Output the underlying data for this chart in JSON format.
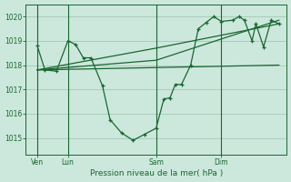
{
  "xlabel": "Pression niveau de la mer( hPa )",
  "background_color": "#cce8dc",
  "grid_color": "#aaccbb",
  "line_color": "#1a6630",
  "ylim": [
    1014.3,
    1020.5
  ],
  "y_ticks": [
    1015,
    1016,
    1017,
    1018,
    1019,
    1020
  ],
  "xlim": [
    0,
    34
  ],
  "day_labels": [
    "Ven",
    "Lun",
    "Sam",
    "Dim"
  ],
  "day_positions": [
    1.5,
    5.5,
    17.0,
    25.5
  ],
  "series1_x": [
    1.5,
    2.5,
    4.0,
    5.5,
    6.5,
    7.5,
    8.5,
    10.0,
    11.0,
    12.5,
    14.0,
    15.5,
    17.0,
    18.0,
    18.8,
    19.5,
    20.3,
    21.5,
    22.5,
    23.5,
    24.5,
    25.5,
    27.0,
    27.8,
    28.5,
    29.5,
    30.0,
    31.0,
    32.0,
    33.0
  ],
  "series1_y": [
    1018.8,
    1017.8,
    1017.75,
    1019.0,
    1018.85,
    1018.3,
    1018.3,
    1017.15,
    1015.75,
    1015.2,
    1014.9,
    1015.15,
    1015.4,
    1016.6,
    1016.65,
    1017.2,
    1017.2,
    1018.0,
    1019.5,
    1019.75,
    1020.0,
    1019.8,
    1019.85,
    1020.0,
    1019.85,
    1019.0,
    1019.7,
    1018.75,
    1019.85,
    1019.7
  ],
  "trend1_x": [
    1.5,
    17.0,
    33.0
  ],
  "trend1_y": [
    1017.8,
    1018.7,
    1019.7
  ],
  "trend2_x": [
    1.5,
    17.0,
    33.0
  ],
  "trend2_y": [
    1017.8,
    1018.2,
    1019.85
  ],
  "trend3_x": [
    1.5,
    33.0
  ],
  "trend3_y": [
    1017.8,
    1018.0
  ],
  "lun_x": 5.5,
  "sam_x": 17.0,
  "dim_x": 25.5
}
